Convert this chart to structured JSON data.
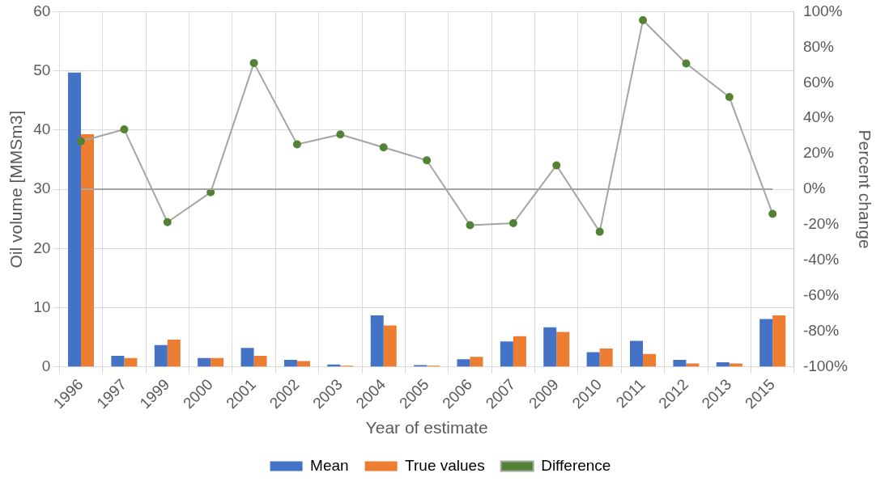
{
  "chart_data": {
    "type": "bar",
    "xlabel": "Year of estimate",
    "ylabel": "Oil volume [MMSm3]",
    "y2label": "Percent change",
    "categories": [
      "1996",
      "1997",
      "1999",
      "2000",
      "2001",
      "2002",
      "2003",
      "2004",
      "2005",
      "2006",
      "2007",
      "2009",
      "2010",
      "2011",
      "2012",
      "2013",
      "2015"
    ],
    "series": [
      {
        "name": "Mean",
        "color": "#4472c4",
        "values": [
          49.7,
          1.9,
          3.7,
          1.5,
          3.2,
          1.2,
          0.4,
          8.7,
          0.3,
          1.3,
          4.3,
          6.7,
          2.5,
          4.4,
          1.2,
          0.8,
          8.1
        ]
      },
      {
        "name": "True values",
        "color": "#ed7d31",
        "values": [
          39.3,
          1.5,
          4.6,
          1.5,
          1.9,
          1.0,
          0.2,
          7.0,
          0.2,
          1.7,
          5.2,
          5.9,
          3.1,
          2.2,
          0.6,
          0.6,
          8.7
        ]
      },
      {
        "name": "Difference",
        "type": "line",
        "axis": "y2",
        "color": "#548235",
        "values": [
          27,
          33.7,
          -18.5,
          -1.7,
          71.1,
          25.3,
          30.9,
          23.6,
          16.3,
          -20.2,
          -19.1,
          13.5,
          -23.9,
          95.2,
          70.8,
          51.9,
          -13.8
        ]
      }
    ],
    "ylim": [
      0,
      60
    ],
    "yticks": [
      0,
      10,
      20,
      30,
      40,
      50,
      60
    ],
    "y2lim": [
      -100,
      100
    ],
    "y2ticks": [
      {
        "value": -100,
        "label": "-100%"
      },
      {
        "value": -80,
        "label": "-80%"
      },
      {
        "value": -60,
        "label": "-60%"
      },
      {
        "value": -40,
        "label": "-40%"
      },
      {
        "value": -20,
        "label": "-20%"
      },
      {
        "value": 0,
        "label": "0%"
      },
      {
        "value": 20,
        "label": "20%"
      },
      {
        "value": 40,
        "label": "40%"
      },
      {
        "value": 60,
        "label": "60%"
      },
      {
        "value": 80,
        "label": "80%"
      },
      {
        "value": 100,
        "label": "100%"
      }
    ],
    "ref_lines": [
      {
        "axis": "y2",
        "value": 0,
        "color": "#a5a5a5"
      }
    ],
    "grid": true,
    "legend": "bottom",
    "marker": "circle"
  }
}
